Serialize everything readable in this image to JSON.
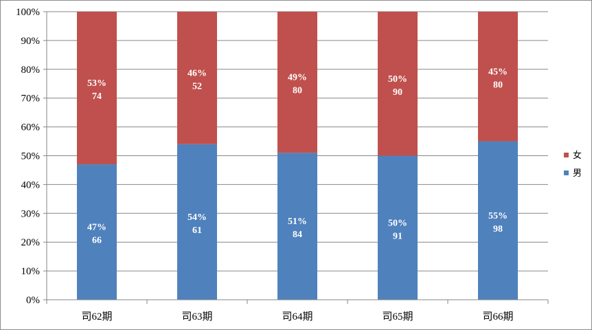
{
  "chart_data": {
    "type": "bar",
    "stacked": "percent",
    "categories": [
      "司62期",
      "司63期",
      "司64期",
      "司65期",
      "司66期"
    ],
    "series": [
      {
        "name": "男",
        "color": "#4f81bd",
        "counts": [
          66,
          61,
          84,
          91,
          98
        ],
        "percent_values": [
          47,
          54,
          51,
          50,
          55
        ],
        "labels_pct": [
          "47%",
          "54%",
          "51%",
          "50%",
          "55%"
        ],
        "labels_count": [
          "66",
          "61",
          "84",
          "91",
          "98"
        ]
      },
      {
        "name": "女",
        "color": "#c0504d",
        "counts": [
          74,
          52,
          80,
          90,
          80
        ],
        "percent_values": [
          53,
          46,
          49,
          50,
          45
        ],
        "labels_pct": [
          "53%",
          "46%",
          "49%",
          "50%",
          "45%"
        ],
        "labels_count": [
          "74",
          "52",
          "80",
          "90",
          "80"
        ]
      }
    ],
    "y_ticks": [
      "0%",
      "10%",
      "20%",
      "30%",
      "40%",
      "50%",
      "60%",
      "70%",
      "80%",
      "90%",
      "100%"
    ],
    "ylim": [
      0,
      100
    ],
    "grid": true,
    "legend_position": "right",
    "legend_order": [
      "女",
      "男"
    ],
    "xlabel": "",
    "ylabel": "",
    "title": ""
  }
}
